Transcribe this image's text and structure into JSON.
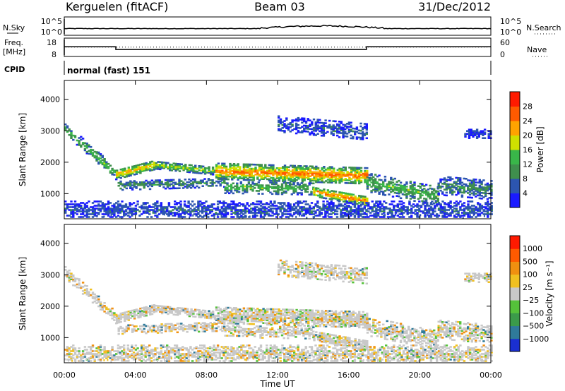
{
  "header": {
    "station": "Kerguelen (fitACF)",
    "beam": "Beam 03",
    "date": "31/Dec/2012"
  },
  "status_panels": {
    "nsky": {
      "label": "N.Sky",
      "ticks": [
        {
          "label": "10^5",
          "level": 1.0
        },
        {
          "label": "10^0",
          "level": 0.0
        }
      ]
    },
    "nsearch": {
      "label": "N.Search"
    },
    "freq": {
      "label": "Freq.",
      "unit": "[MHz]",
      "ticks": [
        {
          "value": 18,
          "label": "18"
        },
        {
          "value": 8,
          "label": "8"
        }
      ],
      "range": [
        8,
        18
      ]
    },
    "nave": {
      "label": "Nave",
      "ticks": [
        {
          "value": 60,
          "label": "60"
        },
        {
          "value": 0,
          "label": "0"
        }
      ],
      "range": [
        0,
        60
      ]
    },
    "cpid": {
      "label": "CPID",
      "text": "normal (fast) 151"
    }
  },
  "chart_data": [
    {
      "type": "heatmap",
      "name": "power",
      "xlabel": "",
      "ylabel": "Slant Range [km]",
      "xlim": [
        0,
        24
      ],
      "ylim": [
        200,
        4600
      ],
      "x_ticks": [
        0,
        4,
        8,
        12,
        16,
        20,
        24
      ],
      "y_ticks": [
        1000,
        2000,
        3000,
        4000
      ],
      "colorbar": {
        "label": "Power [dB]",
        "tick_labels": [
          "4",
          "8",
          "12",
          "16",
          "20",
          "24",
          "28"
        ],
        "colors": [
          "#1a1aff",
          "#2c55b0",
          "#3f8f4d",
          "#39b649",
          "#cfe000",
          "#ffa300",
          "#ff5a00",
          "#ff1a00"
        ]
      },
      "echo_bands": [
        {
          "t_start": 0.0,
          "t_end": 2.9,
          "range_start": 3050,
          "range_end": 1600,
          "width": 180,
          "level": 3
        },
        {
          "t_start": 2.9,
          "t_end": 5.0,
          "range_start": 1600,
          "range_end": 1900,
          "width": 150,
          "level": 5
        },
        {
          "t_start": 5.0,
          "t_end": 8.5,
          "range_start": 1900,
          "range_end": 1700,
          "width": 120,
          "level": 4
        },
        {
          "t_start": 8.5,
          "t_end": 17.0,
          "range_start": 1700,
          "range_end": 1550,
          "width": 250,
          "level": 6
        },
        {
          "t_start": 3.0,
          "t_end": 9.0,
          "range_start": 1250,
          "range_end": 1350,
          "width": 150,
          "level": 2
        },
        {
          "t_start": 9.0,
          "t_end": 14.0,
          "range_start": 1200,
          "range_end": 1150,
          "width": 200,
          "level": 3
        },
        {
          "t_start": 14.0,
          "t_end": 17.0,
          "range_start": 1050,
          "range_end": 750,
          "width": 150,
          "level": 6
        },
        {
          "t_start": 17.0,
          "t_end": 21.0,
          "range_start": 1350,
          "range_end": 900,
          "width": 300,
          "level": 3
        },
        {
          "t_start": 21.0,
          "t_end": 24.0,
          "range_start": 1250,
          "range_end": 1100,
          "width": 300,
          "level": 2
        },
        {
          "t_start": 12.0,
          "t_end": 17.0,
          "range_start": 3200,
          "range_end": 2950,
          "width": 250,
          "level": 1
        },
        {
          "t_start": 22.5,
          "t_end": 24.0,
          "range_start": 2900,
          "range_end": 2900,
          "width": 150,
          "level": 1
        },
        {
          "t_start": 0.0,
          "t_end": 24.0,
          "range_start": 450,
          "range_end": 450,
          "width": 300,
          "level": 1
        }
      ]
    },
    {
      "type": "heatmap",
      "name": "velocity",
      "xlabel": "Time UT",
      "ylabel": "Slant Range [km]",
      "xlim": [
        0,
        24
      ],
      "ylim": [
        200,
        4600
      ],
      "x_ticks": [
        0,
        4,
        8,
        12,
        16,
        20,
        24
      ],
      "x_tick_labels": [
        "00:00",
        "04:00",
        "08:00",
        "12:00",
        "16:00",
        "20:00",
        "00:00"
      ],
      "y_ticks": [
        1000,
        2000,
        3000,
        4000
      ],
      "colorbar": {
        "label": "Velocity [m s⁻¹]",
        "tick_labels": [
          "1000",
          "500",
          "100",
          "25",
          "−25",
          "−100",
          "−500",
          "−1000"
        ],
        "colors": [
          "#1a2fd0",
          "#2f7a9a",
          "#3b9b4a",
          "#55c23a",
          "#c8c8c8",
          "#f0c020",
          "#f09010",
          "#ff5a00",
          "#ff1a00"
        ]
      }
    }
  ]
}
